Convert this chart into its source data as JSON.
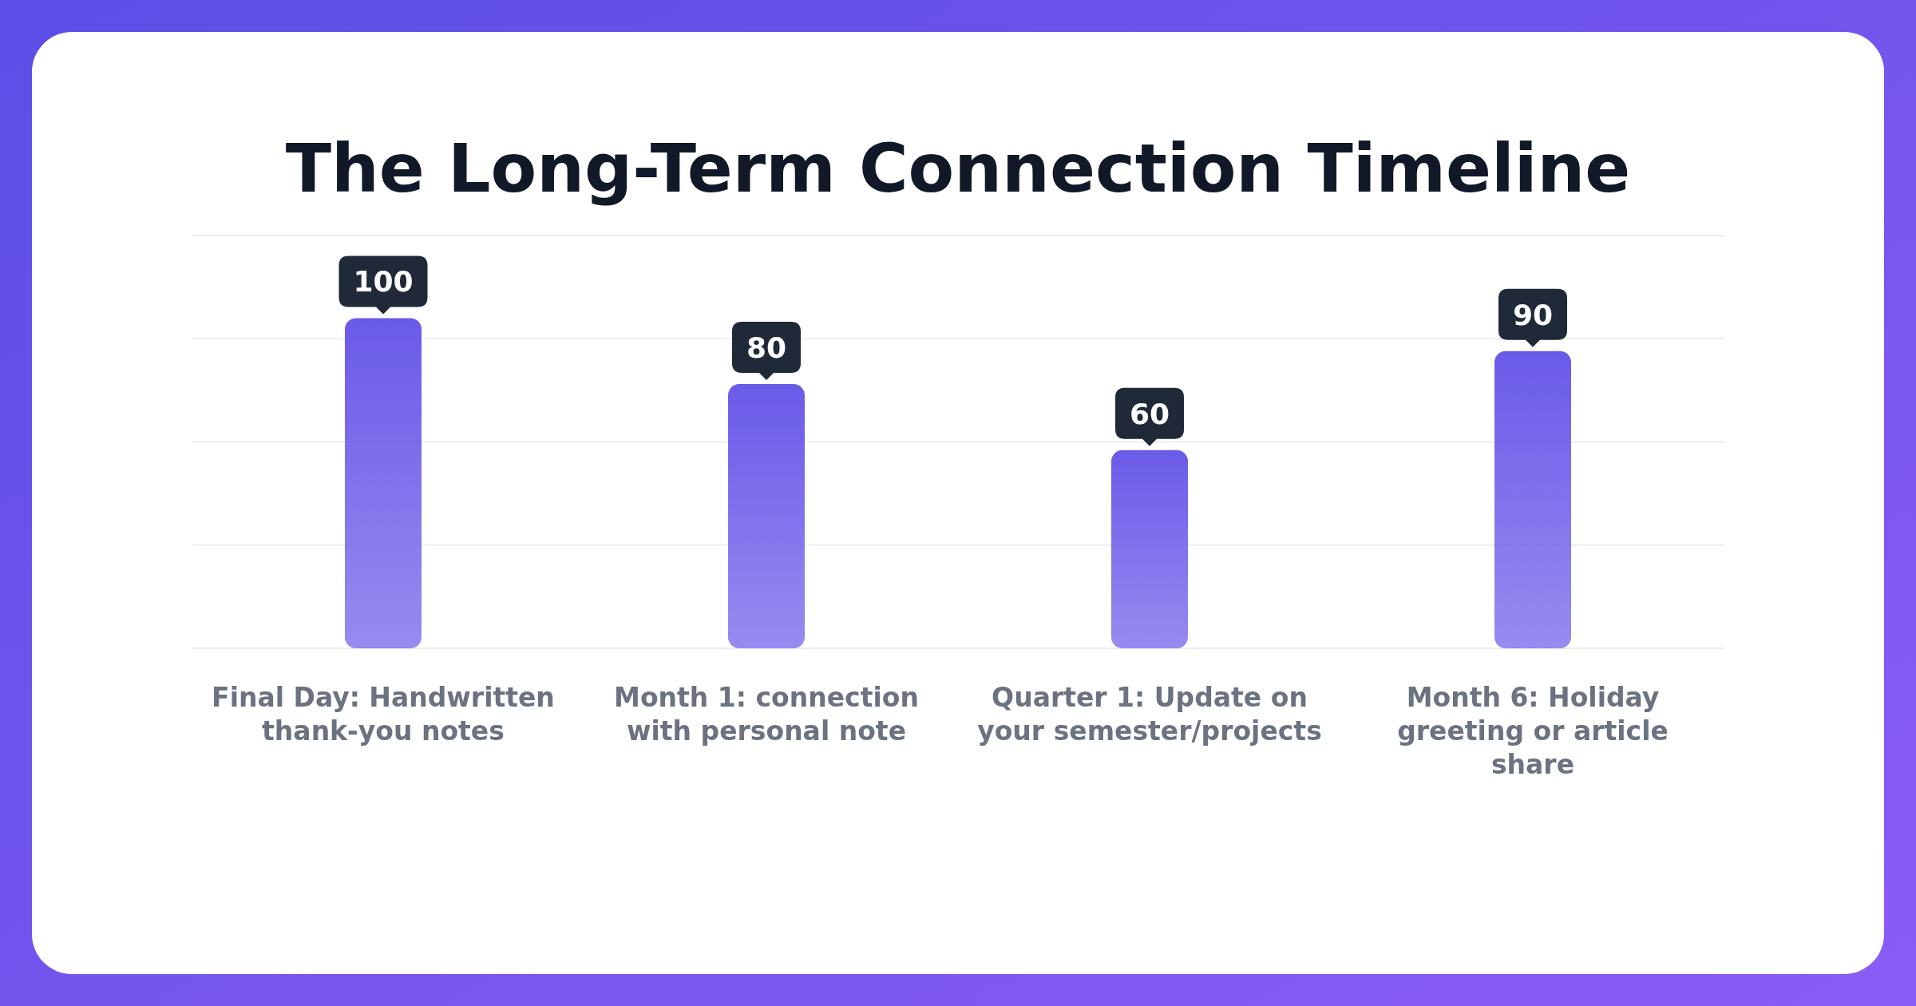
{
  "chart_data": {
    "type": "bar",
    "title": "The Long-Term Connection Timeline",
    "categories": [
      "Final Day: Handwritten thank-you notes",
      "Month 1: connection with personal note",
      "Quarter 1: Update on your semester/projects",
      "Month 6: Holiday greeting or article share"
    ],
    "values": [
      100,
      80,
      60,
      90
    ],
    "color": "#6a5ae9",
    "ylim": [
      0,
      125
    ],
    "yticks": [
      {
        "value": 0,
        "label": null
      },
      {
        "value": 31.25,
        "label": null
      },
      {
        "value": 62.5,
        "label": null
      },
      {
        "value": 93.75,
        "label": null
      },
      {
        "value": 125,
        "label": null
      }
    ],
    "grid": "y",
    "tick_labels": "x",
    "data_labels": true
  }
}
